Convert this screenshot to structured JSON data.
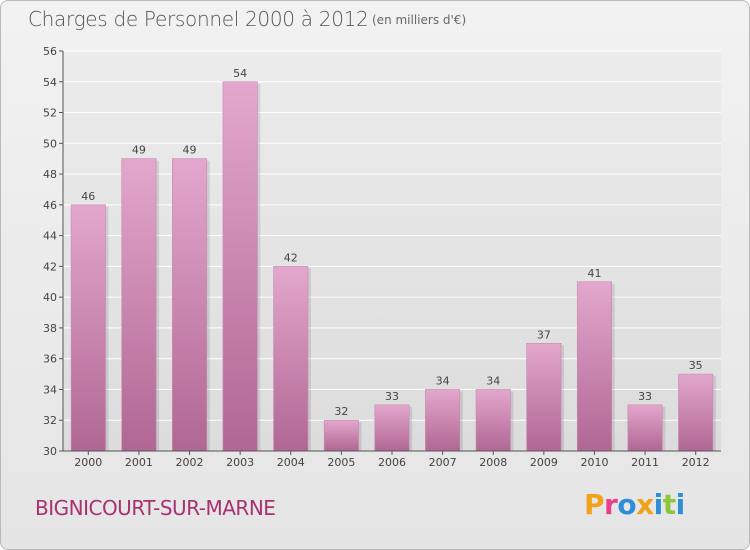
{
  "header": {
    "title": "Charges de Personnel 2000 à 2012",
    "subtitle": "(en milliers d'€)"
  },
  "footer": {
    "place": "BIGNICOURT-SUR-MARNE",
    "logo": [
      "P",
      "r",
      "o",
      "x",
      "i",
      "t",
      "i"
    ],
    "logo_colors": [
      "#f0a31a",
      "#e83e8c",
      "#2f8fd6",
      "#f0a31a",
      "#2f8fd6",
      "#8cc63f",
      "#2f8fd6"
    ]
  },
  "colors": {
    "bar_top": "#e3a7cd",
    "bar_bottom": "#b06793",
    "axis": "#555555",
    "grid": "#ffffff"
  },
  "chart_data": {
    "type": "bar",
    "categories": [
      "2000",
      "2001",
      "2002",
      "2003",
      "2004",
      "2005",
      "2006",
      "2007",
      "2008",
      "2009",
      "2010",
      "2011",
      "2012"
    ],
    "values": [
      46,
      49,
      49,
      54,
      42,
      32,
      33,
      34,
      34,
      37,
      41,
      33,
      35
    ],
    "ylim": [
      30,
      56
    ],
    "yticks": [
      30,
      32,
      34,
      36,
      38,
      40,
      42,
      44,
      46,
      48,
      50,
      52,
      54,
      56
    ],
    "grid": true,
    "xlabel": "",
    "ylabel": ""
  }
}
